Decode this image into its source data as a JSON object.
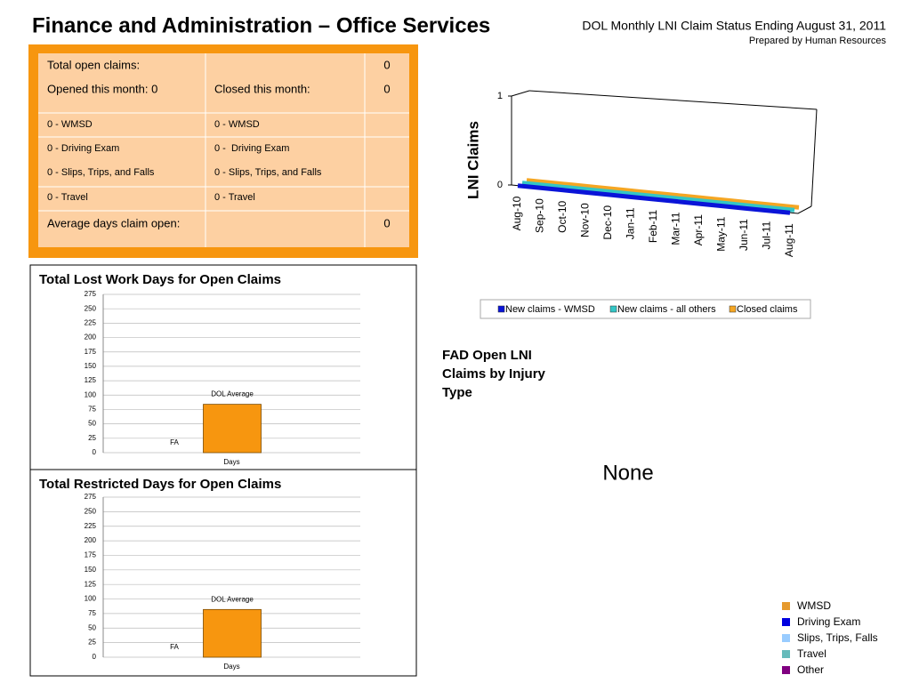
{
  "header": {
    "title": "Finance and Administration – Office Services",
    "subtitle": "DOL Monthly LNI Claim Status Ending August 31, 2011",
    "prepared_by": "Prepared by Human Resources"
  },
  "table": {
    "total_open": {
      "label": "Total open claims:",
      "value": 0
    },
    "opened": "Opened this month: 0",
    "closed": {
      "label": "Closed this month:",
      "value": 0
    },
    "opened_by_type": [
      "0 - WMSD",
      "0 - Driving Exam",
      "0 - Slips, Trips, and Falls",
      "0 - Travel"
    ],
    "closed_by_type": [
      "0 - WMSD",
      "0 -  Driving Exam",
      "0 - Slips, Trips, and Falls",
      "0 - Travel"
    ],
    "avg_days": {
      "label": "Average days claim open:",
      "value": 0
    }
  },
  "chart_data": [
    {
      "type": "line",
      "y_label": "LNI Claims",
      "categories": [
        "Aug-10",
        "Sep-10",
        "Oct-10",
        "Nov-10",
        "Dec-10",
        "Jan-11",
        "Feb-11",
        "Mar-11",
        "Apr-11",
        "May-11",
        "Jun-11",
        "Jul-11",
        "Aug-11"
      ],
      "series": [
        {
          "name": "New claims - WMSD",
          "color": "#0a14d8",
          "values": [
            0,
            0,
            0,
            0,
            0,
            0,
            0,
            0,
            0,
            0,
            0,
            0,
            0
          ]
        },
        {
          "name": "New claims - all others",
          "color": "#33c6c6",
          "values": [
            0,
            0,
            0,
            0,
            0,
            0,
            0,
            0,
            0,
            0,
            0,
            0,
            0
          ]
        },
        {
          "name": "Closed claims",
          "color": "#f5a623",
          "values": [
            0,
            0,
            0,
            0,
            0,
            0,
            0,
            0,
            0,
            0,
            0,
            0,
            0
          ]
        }
      ],
      "ylim": [
        0,
        1
      ],
      "yticks": [
        0,
        1
      ],
      "legend": "bottom"
    },
    {
      "type": "bar",
      "title": "Total Lost Work Days for Open Claims",
      "categories": [
        "Days"
      ],
      "series": [
        {
          "name": "FA",
          "color": "#f7960f",
          "values": [
            0
          ]
        },
        {
          "name": "DOL Average",
          "color": "#f7960f",
          "values": [
            84
          ]
        }
      ],
      "ylim": [
        0,
        275
      ],
      "yticks": [
        0,
        25,
        50,
        75,
        100,
        125,
        150,
        175,
        200,
        225,
        250,
        275
      ],
      "grid": true
    },
    {
      "type": "bar",
      "title": "Total Restricted Days for Open Claims",
      "categories": [
        "Days"
      ],
      "series": [
        {
          "name": "FA",
          "color": "#f7960f",
          "values": [
            0
          ]
        },
        {
          "name": "DOL Average",
          "color": "#f7960f",
          "values": [
            82
          ]
        }
      ],
      "ylim": [
        0,
        275
      ],
      "yticks": [
        0,
        25,
        50,
        75,
        100,
        125,
        150,
        175,
        200,
        225,
        250,
        275
      ],
      "grid": true
    },
    {
      "type": "pie",
      "title": "FAD Open LNI Claims by Injury Type",
      "annotation": "None",
      "categories": [
        "WMSD",
        "Driving Exam",
        "Slips, Trips, Falls",
        "Travel",
        "Other"
      ],
      "colors": [
        "#e69a2e",
        "#0000e0",
        "#99ccff",
        "#66bbbb",
        "#800080"
      ]
    }
  ]
}
